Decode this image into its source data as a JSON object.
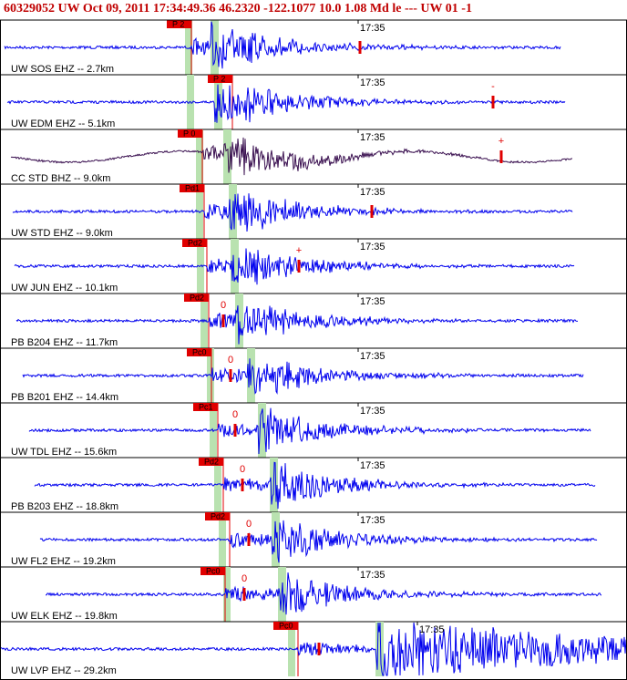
{
  "header": {
    "title": "60329052 UW Oct 09, 2011 17:34:49.36    46.2320 -122.1077 10.0 1.08 Md le --- UW 01  -1"
  },
  "traces": [
    {
      "station": "UW SOS EHZ -- 2.7km",
      "time_label": "17:35",
      "pick": "P 2"
    },
    {
      "station": "UW EDM EHZ -- 5.1km",
      "time_label": "17:35",
      "pick": "P 2",
      "marker": "-"
    },
    {
      "station": "CC STD BHZ -- 9.0km",
      "time_label": "17:35",
      "pick": "P 0",
      "marker": "+"
    },
    {
      "station": "UW STD EHZ -- 9.0km",
      "time_label": "17:35",
      "pick": "Pd1"
    },
    {
      "station": "UW JUN EHZ -- 10.1km",
      "time_label": "17:35",
      "pick": "Pd2",
      "marker": "+"
    },
    {
      "station": "PB B204 EHZ -- 11.7km",
      "time_label": "17:35",
      "pick": "Pd2",
      "marker": "0"
    },
    {
      "station": "PB B201 EHZ -- 14.4km",
      "time_label": "17:35",
      "pick": "Pc0",
      "marker": "0"
    },
    {
      "station": "UW TDL EHZ -- 15.6km",
      "time_label": "17:35",
      "pick": "Pc1",
      "marker": "0"
    },
    {
      "station": "PB B203 EHZ -- 18.8km",
      "time_label": "17:35",
      "pick": "Pd2",
      "marker": "0"
    },
    {
      "station": "UW FL2 EHZ -- 19.2km",
      "time_label": "17:35",
      "pick": "Pd2",
      "marker": "0"
    },
    {
      "station": "UW ELK EHZ -- 19.8km",
      "time_label": "17:35",
      "pick": "Pc0",
      "marker": "0"
    },
    {
      "station": "UW LVP EHZ -- 29.2km",
      "time_label": "17:35",
      "pick": "Pc0"
    }
  ]
}
